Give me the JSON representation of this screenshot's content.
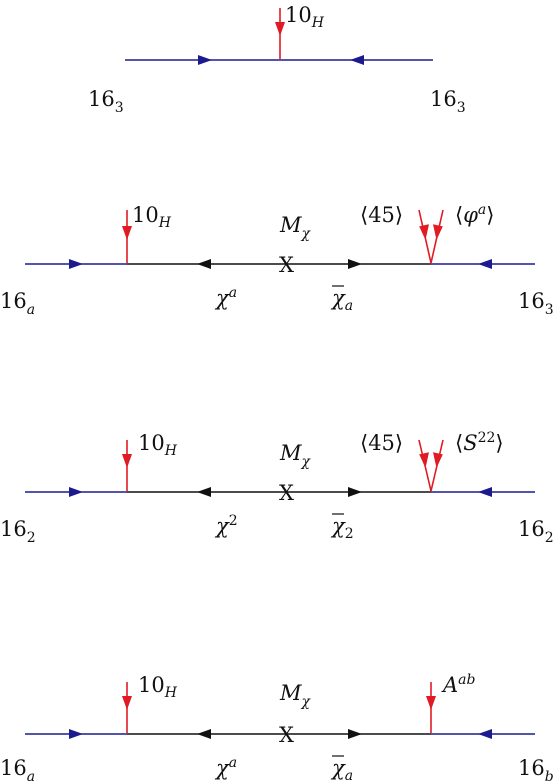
{
  "colors": {
    "external_line": "#1b1b8f",
    "internal_line": "#111111",
    "insertion": "#e01b24",
    "text": "#111111"
  },
  "diagrams": [
    {
      "id": "d1",
      "left_field": {
        "base": "16",
        "sub": "3"
      },
      "right_field": {
        "base": "16",
        "sub": "3"
      },
      "vertex_label": {
        "base": "10",
        "sub": "H"
      }
    },
    {
      "id": "d2",
      "left_field": {
        "base": "16",
        "sub": "a"
      },
      "right_field": {
        "base": "16",
        "sub": "3"
      },
      "left_vertex_label": {
        "base": "10",
        "sub": "H"
      },
      "mass_label": {
        "base": "M",
        "sub": "χ"
      },
      "mass_insertion": "X",
      "chi_label": {
        "base": "χ",
        "sup": "a"
      },
      "chibar_label": {
        "base": "χ",
        "sub": "a"
      },
      "vev1": "⟨45⟩",
      "vev2": {
        "open": "⟨",
        "base": "φ",
        "sup": "a",
        "close": "⟩"
      }
    },
    {
      "id": "d3",
      "left_field": {
        "base": "16",
        "sub": "2"
      },
      "right_field": {
        "base": "16",
        "sub": "2"
      },
      "left_vertex_label": {
        "base": "10",
        "sub": "H"
      },
      "mass_label": {
        "base": "M",
        "sub": "χ"
      },
      "mass_insertion": "X",
      "chi_label": {
        "base": "χ",
        "sup": "2"
      },
      "chibar_label": {
        "base": "χ",
        "sub": "2"
      },
      "vev1": "⟨45⟩",
      "vev2": {
        "open": "⟨",
        "base": "S",
        "sup": "22",
        "close": "⟩"
      }
    },
    {
      "id": "d4",
      "left_field": {
        "base": "16",
        "sub": "a"
      },
      "right_field": {
        "base": "16",
        "sub": "b"
      },
      "left_vertex_label": {
        "base": "10",
        "sub": "H"
      },
      "mass_label": {
        "base": "M",
        "sub": "χ"
      },
      "mass_insertion": "X",
      "chi_label": {
        "base": "χ",
        "sup": "a"
      },
      "chibar_label": {
        "base": "χ",
        "sub": "a"
      },
      "right_vertex_label": {
        "base": "A",
        "sup": "ab"
      }
    }
  ]
}
